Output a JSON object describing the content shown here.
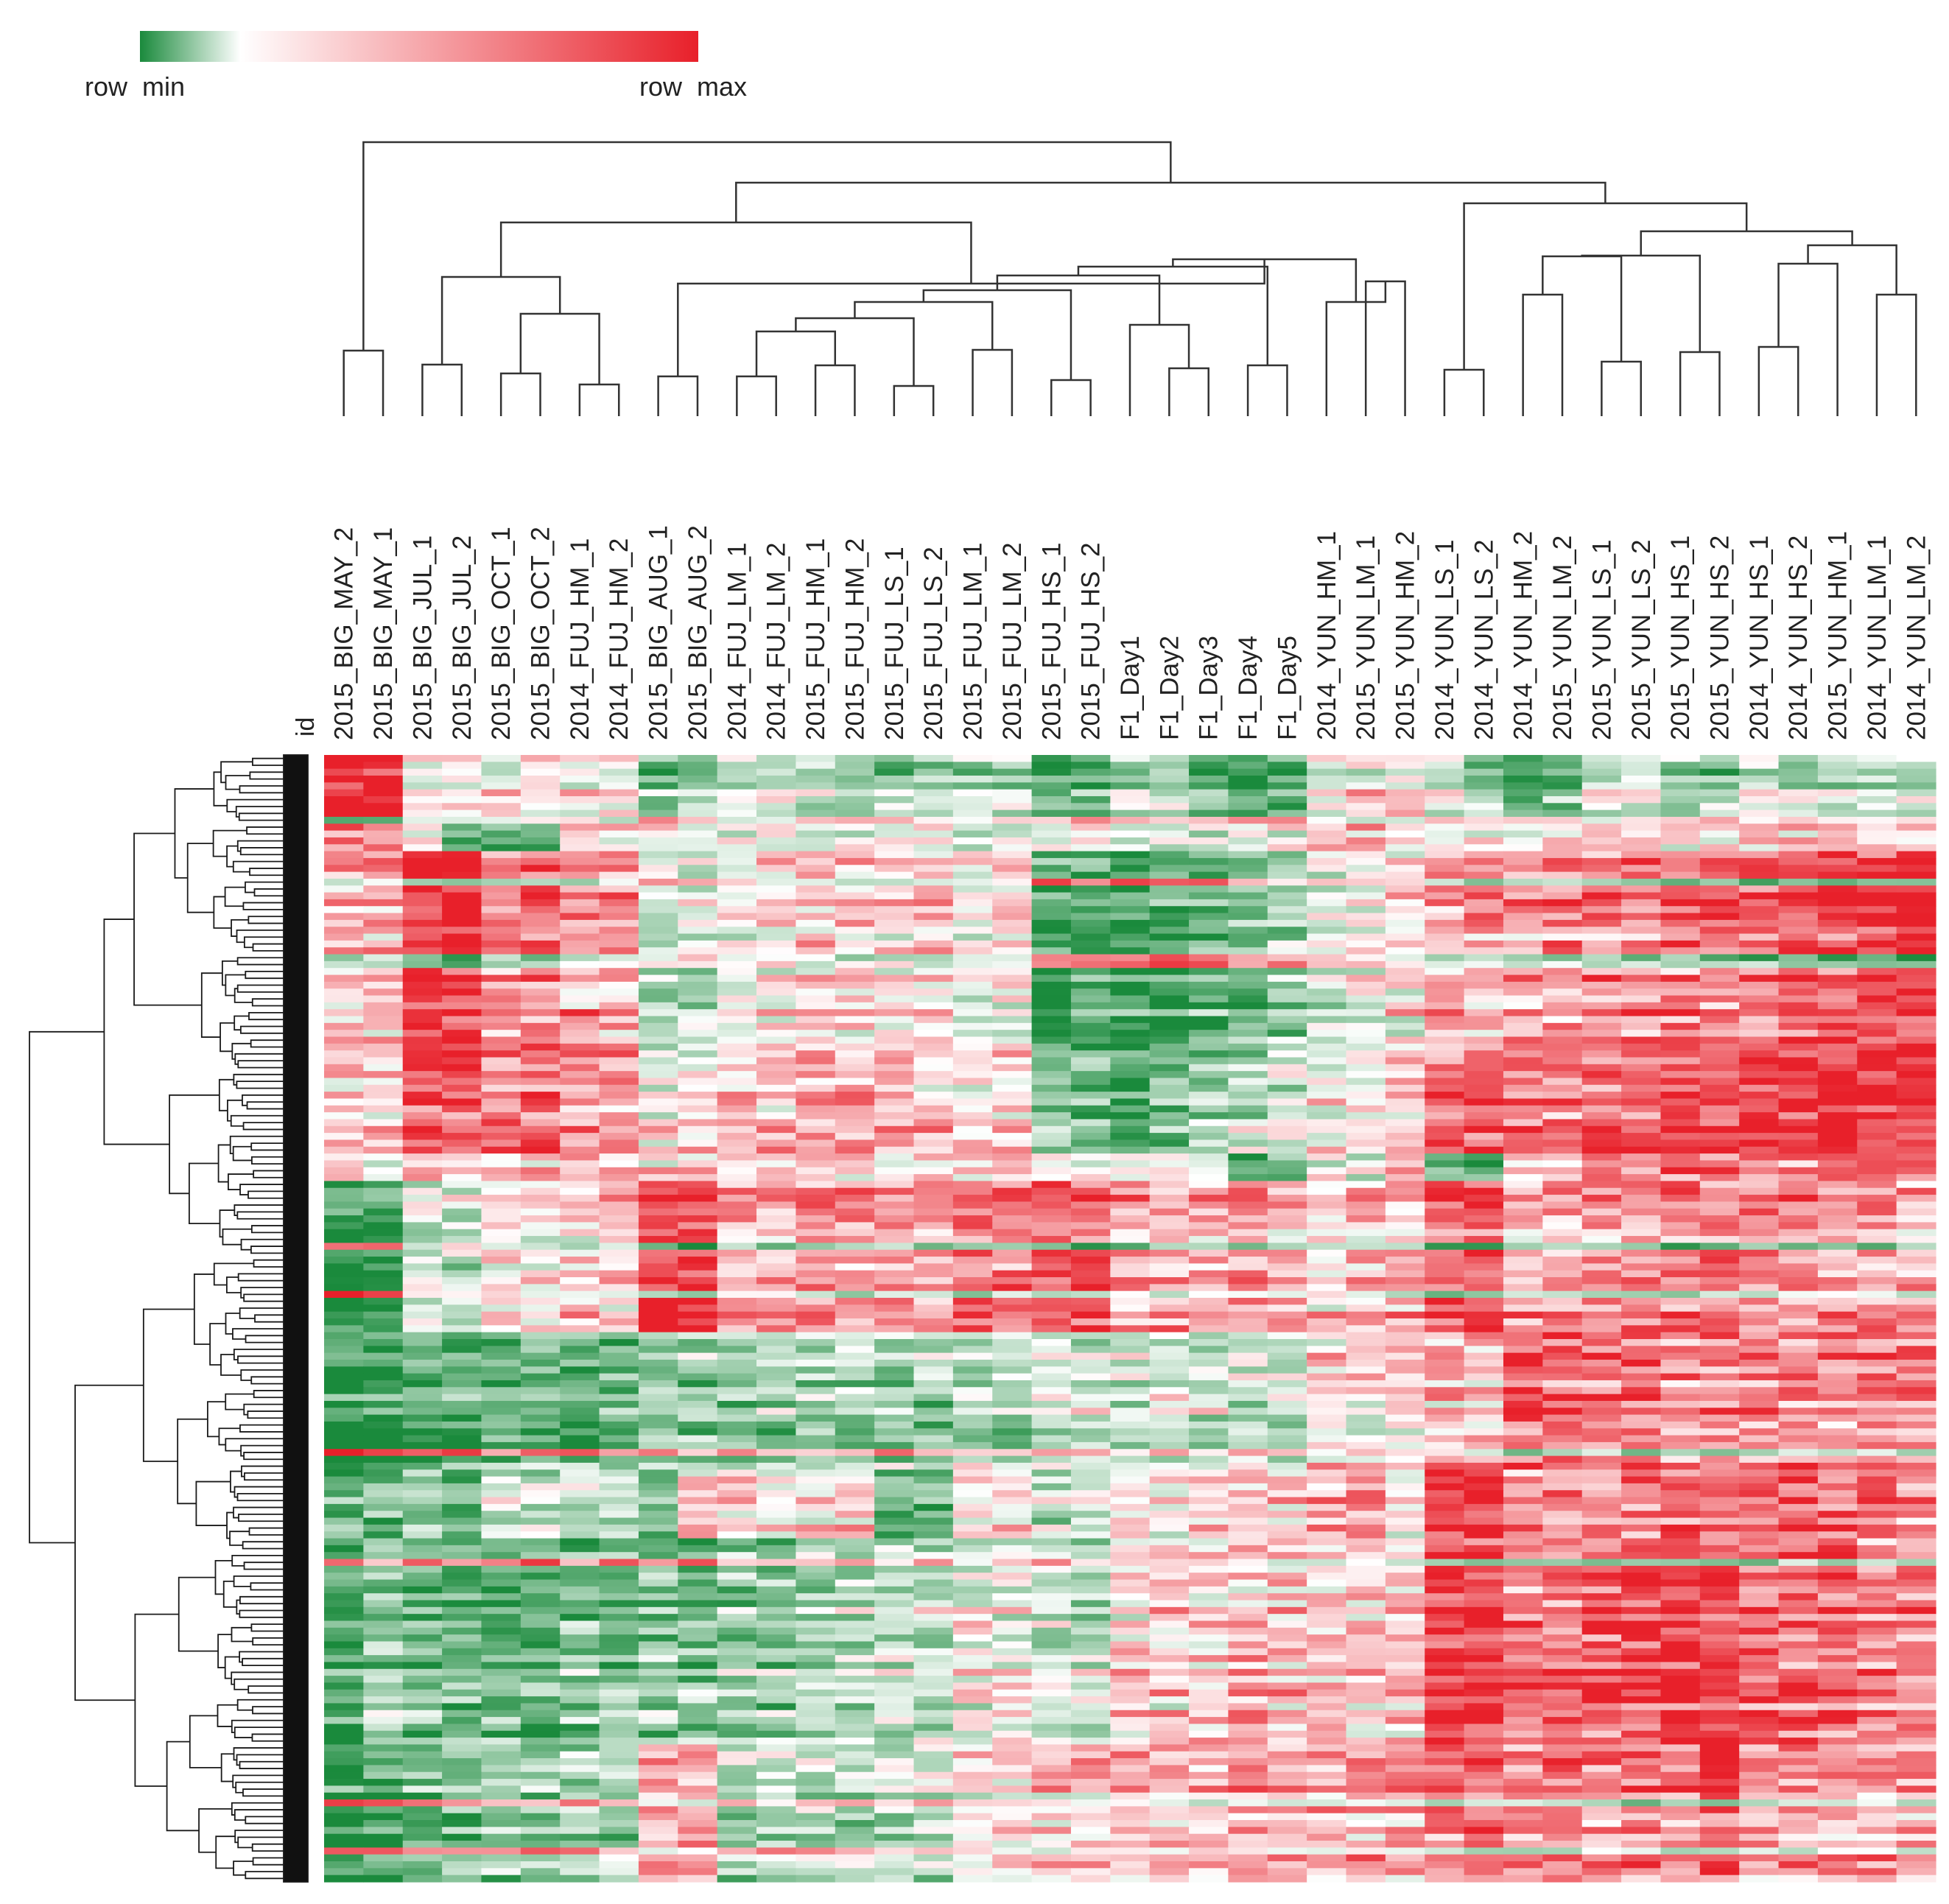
{
  "chart_data": {
    "type": "heatmap",
    "title": "",
    "legend": {
      "min_label": "row  min",
      "max_label": "row  max",
      "colors": [
        "#1a8a3c",
        "#ffffff",
        "#e8202a"
      ]
    },
    "row_header_label": "id",
    "columns": [
      "2015_BIG_MAY_2",
      "2015_BIG_MAY_1",
      "2015_BIG_JUL_1",
      "2015_BIG_JUL_2",
      "2015_BIG_OCT_1",
      "2015_BIG_OCT_2",
      "2014_FUJ_HM_1",
      "2014_FUJ_HM_2",
      "2015_BIG_AUG_1",
      "2015_BIG_AUG_2",
      "2014_FUJ_LM_1",
      "2014_FUJ_LM_2",
      "2015_FUJ_HM_1",
      "2015_FUJ_HM_2",
      "2015_FUJ_LS_1",
      "2015_FUJ_LS_2",
      "2015_FUJ_LM_1",
      "2015_FUJ_LM_2",
      "2015_FUJ_HS_1",
      "2015_FUJ_HS_2",
      "F1_Day1",
      "F1_Day2",
      "F1_Day3",
      "F1_Day4",
      "F1_Day5",
      "2014_YUN_HM_1",
      "2015_YUN_LM_1",
      "2015_YUN_HM_2",
      "2014_YUN_LS_1",
      "2014_YUN_LS_2",
      "2014_YUN_HM_2",
      "2015_YUN_LM_2",
      "2015_YUN_LS_1",
      "2015_YUN_LS_2",
      "2015_YUN_HS_1",
      "2015_YUN_HS_2",
      "2014_YUN_HS_1",
      "2014_YUN_HS_2",
      "2015_YUN_HM_1",
      "2014_YUN_LM_1",
      "2014_YUN_LM_2"
    ],
    "blocks": [
      {
        "rows": 10,
        "values": [
          0.95,
          0.9,
          0.1,
          0.1,
          0.05,
          0.05,
          0.0,
          0.0,
          -0.55,
          -0.5,
          -0.2,
          -0.2,
          -0.3,
          -0.3,
          -0.4,
          -0.5,
          -0.3,
          -0.3,
          -0.7,
          -0.7,
          -0.3,
          -0.3,
          -0.6,
          -0.8,
          -0.8,
          -0.1,
          0.1,
          0.1,
          -0.2,
          -0.4,
          -0.7,
          -0.6,
          -0.2,
          -0.2,
          -0.4,
          -0.4,
          -0.2,
          -0.3,
          -0.2,
          -0.4,
          -0.3
        ]
      },
      {
        "rows": 4,
        "values": [
          0.6,
          0.6,
          0.3,
          -0.6,
          -0.6,
          -0.6,
          0.2,
          0.2,
          0.1,
          0.1,
          0.1,
          0.1,
          0.1,
          0.1,
          0.1,
          0.1,
          0.0,
          0.0,
          0.1,
          0.1,
          0.0,
          0.1,
          0.0,
          0.1,
          0.1,
          0.4,
          0.4,
          0.3,
          0.2,
          0.2,
          0.2,
          0.2,
          0.2,
          0.2,
          0.2,
          0.2,
          0.3,
          0.3,
          0.3,
          0.3,
          0.3
        ]
      },
      {
        "rows": 30,
        "values": [
          0.3,
          0.3,
          0.85,
          0.9,
          0.5,
          0.6,
          0.4,
          0.4,
          -0.3,
          -0.2,
          0.0,
          0.1,
          0.2,
          0.2,
          0.1,
          0.2,
          0.0,
          0.1,
          -0.8,
          -0.8,
          -0.85,
          -0.8,
          -0.7,
          -0.6,
          -0.4,
          -0.2,
          0.0,
          0.1,
          0.4,
          0.4,
          0.4,
          0.5,
          0.5,
          0.5,
          0.6,
          0.6,
          0.7,
          0.7,
          0.8,
          0.8,
          0.9
        ]
      },
      {
        "rows": 14,
        "values": [
          0.2,
          0.2,
          0.7,
          0.7,
          0.5,
          0.6,
          0.4,
          0.4,
          0.0,
          0.1,
          0.2,
          0.2,
          0.3,
          0.3,
          0.2,
          0.2,
          0.1,
          0.2,
          -0.6,
          -0.6,
          -0.9,
          -0.6,
          -0.4,
          -0.3,
          -0.2,
          0.0,
          0.1,
          0.2,
          0.6,
          0.6,
          0.5,
          0.5,
          0.6,
          0.6,
          0.7,
          0.7,
          0.85,
          0.85,
          0.9,
          0.8,
          0.85
        ]
      },
      {
        "rows": 4,
        "values": [
          0.1,
          0.1,
          0.3,
          0.3,
          0.2,
          0.2,
          0.2,
          0.2,
          0.1,
          0.1,
          0.1,
          0.1,
          0.1,
          0.1,
          0.1,
          0.1,
          0.1,
          0.1,
          0.0,
          0.0,
          0.0,
          0.0,
          -0.2,
          -0.9,
          -0.7,
          0.0,
          -0.2,
          0.1,
          -0.7,
          -0.8,
          0.3,
          0.3,
          0.4,
          0.4,
          0.5,
          0.5,
          0.5,
          0.5,
          0.6,
          0.6,
          0.6
        ]
      },
      {
        "rows": 22,
        "values": [
          -0.85,
          -0.85,
          -0.2,
          -0.2,
          0.1,
          0.1,
          0.2,
          0.2,
          0.9,
          0.85,
          0.4,
          0.4,
          0.5,
          0.5,
          0.4,
          0.4,
          0.6,
          0.6,
          0.7,
          0.7,
          0.4,
          0.4,
          0.4,
          0.4,
          0.4,
          0.2,
          0.3,
          0.3,
          0.7,
          0.7,
          0.4,
          0.4,
          0.5,
          0.5,
          0.6,
          0.6,
          0.5,
          0.5,
          0.4,
          0.4,
          0.4
        ]
      },
      {
        "rows": 20,
        "values": [
          -0.9,
          -0.9,
          -0.7,
          -0.7,
          -0.6,
          -0.6,
          -0.7,
          -0.7,
          -0.4,
          -0.4,
          -0.4,
          -0.4,
          -0.3,
          -0.3,
          -0.4,
          -0.4,
          -0.3,
          -0.3,
          -0.2,
          -0.2,
          -0.2,
          -0.2,
          -0.2,
          -0.2,
          -0.2,
          0.1,
          0.1,
          0.2,
          0.3,
          0.3,
          0.8,
          0.7,
          0.6,
          0.7,
          0.5,
          0.5,
          0.6,
          0.6,
          0.5,
          0.6,
          0.6
        ]
      },
      {
        "rows": 10,
        "values": [
          -0.7,
          -0.6,
          -0.4,
          -0.8,
          -0.2,
          -0.2,
          -0.2,
          -0.2,
          -0.8,
          0.2,
          0.1,
          0.1,
          0.1,
          0.1,
          -0.7,
          -0.7,
          0.0,
          0.0,
          -0.3,
          -0.3,
          0.1,
          0.0,
          0.1,
          0.2,
          0.2,
          0.3,
          0.4,
          0.0,
          0.9,
          0.9,
          0.5,
          0.5,
          0.5,
          0.5,
          0.6,
          0.6,
          0.5,
          0.6,
          0.6,
          0.5,
          0.4
        ]
      },
      {
        "rows": 30,
        "values": [
          -0.8,
          -0.4,
          -0.6,
          -0.6,
          -0.6,
          -0.6,
          -0.5,
          -0.5,
          -0.5,
          -0.5,
          -0.4,
          -0.4,
          -0.3,
          -0.3,
          -0.2,
          -0.2,
          0.0,
          0.0,
          -0.2,
          -0.2,
          0.2,
          0.2,
          0.2,
          0.3,
          0.3,
          0.3,
          0.3,
          0.3,
          0.9,
          0.9,
          0.6,
          0.6,
          0.7,
          0.8,
          0.9,
          0.9,
          0.7,
          0.7,
          0.7,
          0.6,
          0.6
        ]
      },
      {
        "rows": 20,
        "values": [
          -0.9,
          -0.8,
          -0.6,
          -0.6,
          -0.4,
          -0.4,
          -0.4,
          -0.4,
          0.4,
          0.4,
          -0.3,
          -0.3,
          -0.3,
          -0.3,
          -0.2,
          -0.2,
          0.1,
          0.1,
          0.2,
          0.2,
          0.3,
          0.3,
          0.3,
          0.4,
          0.4,
          0.4,
          0.4,
          0.4,
          0.6,
          0.6,
          0.5,
          0.6,
          0.5,
          0.6,
          0.6,
          0.8,
          0.5,
          0.5,
          0.4,
          0.4,
          0.4
        ]
      }
    ],
    "noise": 0.35,
    "total_rows": 164
  }
}
